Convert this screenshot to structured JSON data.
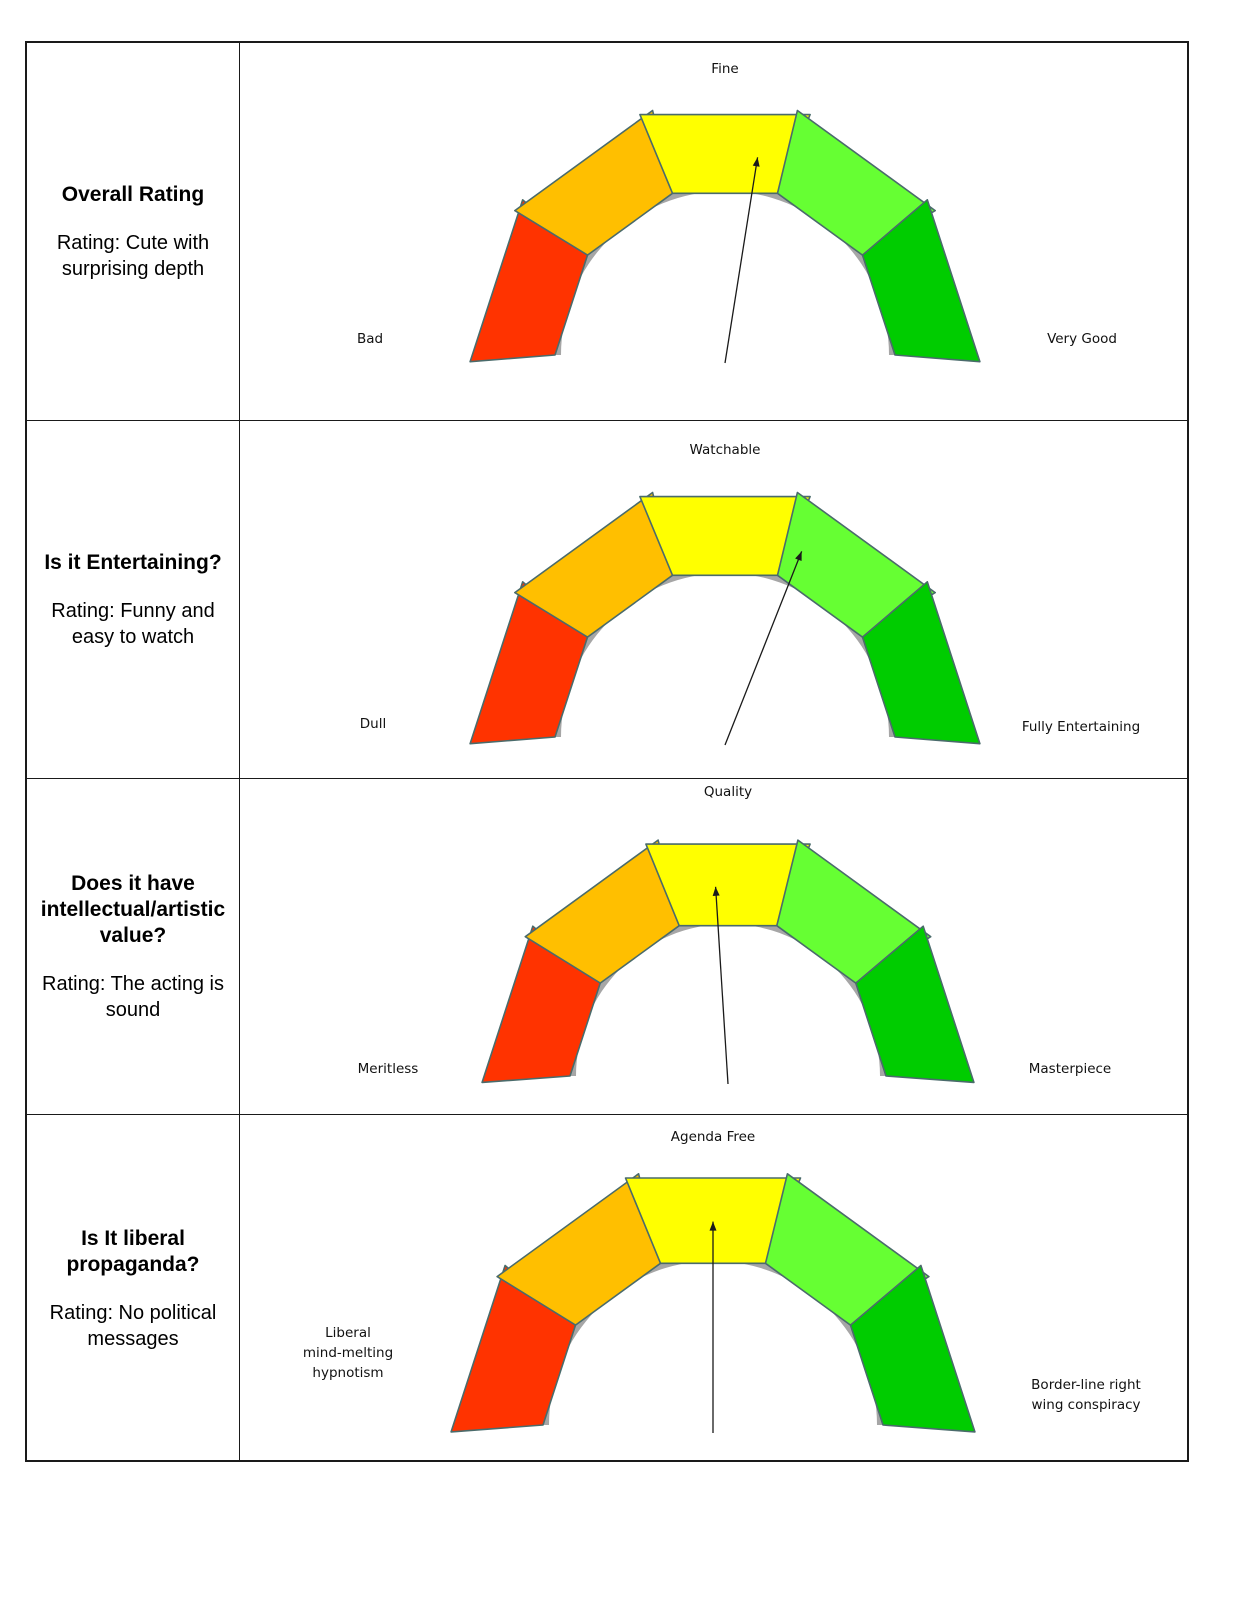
{
  "colors": {
    "track": "#a6a6a6",
    "segments": [
      "#ff3300",
      "#ffbf00",
      "#ffff00",
      "#66ff33",
      "#00cc00"
    ],
    "segment_stroke": "#4a6b6b"
  },
  "scale_positions": 5,
  "rows": [
    {
      "question": "Overall Rating",
      "rating": "Rating: Cute with surprising depth",
      "labels": {
        "left": [
          "Bad"
        ],
        "top": "Fine",
        "right": [
          "Very Good"
        ]
      },
      "needle_value": 3.25
    },
    {
      "question": "Is it Entertaining?",
      "rating": "Rating: Funny and easy to watch",
      "labels": {
        "left": [
          "Dull"
        ],
        "top": "Watchable",
        "right": [
          "Fully Entertaining"
        ]
      },
      "needle_value": 3.6
    },
    {
      "question": "Does it have intellectual/artistic value?",
      "rating": "Rating:  The acting is sound",
      "labels": {
        "left": [
          "Meritless"
        ],
        "top": "Quality",
        "right": [
          "Masterpiece"
        ]
      },
      "needle_value": 2.9
    },
    {
      "question": "Is It liberal propaganda?",
      "rating": "Rating: No political messages",
      "labels": {
        "left": [
          "Liberal",
          "mind-melting",
          "hypnotism"
        ],
        "top": "Agenda Free",
        "right": [
          "Border-line right",
          "wing conspiracy"
        ]
      },
      "needle_value": 3.0
    }
  ]
}
